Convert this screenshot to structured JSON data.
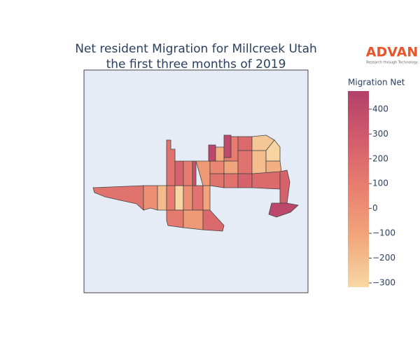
{
  "chart_data": {
    "type": "choropleth",
    "title": [
      "Net resident Migration for Millcreek Utah",
      "the first three months of 2019"
    ],
    "colorbar_title": "Migration Net",
    "colorlim": [
      -317,
      473
    ],
    "colorticks": [
      {
        "value": -300,
        "label": "−300"
      },
      {
        "value": -200,
        "label": "−200"
      },
      {
        "value": -100,
        "label": "−100"
      },
      0,
      100,
      200,
      300,
      400
    ],
    "colorscale": [
      [
        0,
        "#f7d8a5"
      ],
      [
        0.25,
        "#f2a77c"
      ],
      [
        0.5,
        "#e9806f"
      ],
      [
        0.75,
        "#d35d6c"
      ],
      [
        1,
        "#b2406a"
      ]
    ],
    "values": [
      150,
      0,
      -200,
      100,
      -300,
      0,
      150,
      -100,
      120,
      -50,
      200,
      150,
      250,
      100,
      350,
      -50,
      50,
      420,
      -150,
      400,
      100,
      200,
      -250,
      -300,
      -100,
      150,
      -200,
      -150,
      150,
      150,
      250,
      200,
      250,
      420
    ]
  },
  "logo": {
    "text": "ADVAN",
    "tagline": "Research through Technology"
  }
}
